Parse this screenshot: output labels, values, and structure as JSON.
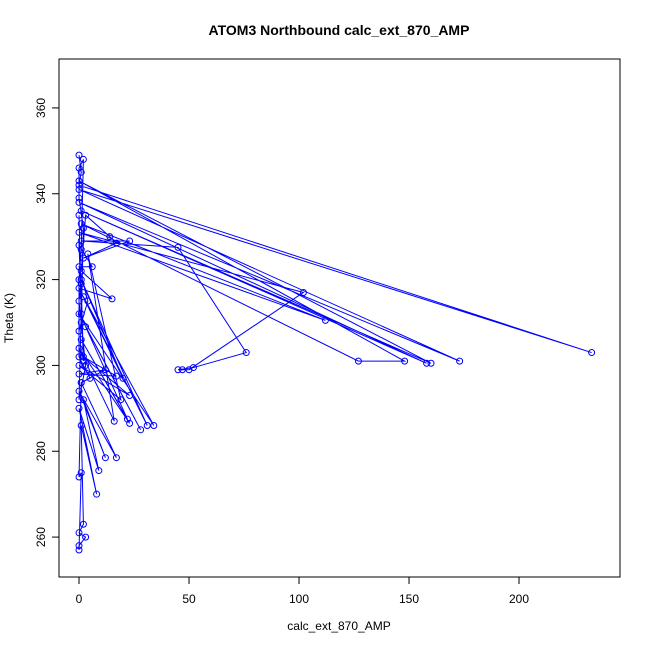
{
  "chart_data": {
    "type": "line",
    "marker": "circle",
    "title": "ATOM3 Northbound calc_ext_870_AMP",
    "x_label": "calc_ext_870_AMP",
    "y_label": "Theta (K)",
    "color": "#0000ff",
    "x": [
      0,
      1,
      0,
      233,
      0,
      173,
      0,
      158,
      1,
      160,
      0,
      148,
      127,
      1,
      112,
      0,
      102,
      50,
      47,
      45,
      52,
      76,
      45,
      1,
      23,
      2,
      17,
      14,
      3,
      1,
      15,
      0,
      20,
      1,
      31,
      2,
      34,
      0,
      28,
      3,
      22,
      1,
      23,
      0,
      16,
      4,
      19,
      0,
      23,
      2,
      17,
      0,
      12,
      1,
      17,
      0,
      12,
      2,
      9,
      0,
      8,
      1,
      2,
      0,
      3,
      0,
      0,
      1,
      0,
      1,
      5,
      0,
      0,
      1,
      2,
      0,
      0,
      2,
      1,
      0,
      4,
      0,
      6,
      0,
      2,
      1,
      0,
      3,
      0,
      1,
      0
    ],
    "values": [
      349,
      345,
      342,
      303,
      341,
      301,
      338,
      300.5,
      336,
      300.5,
      343,
      301,
      301,
      333,
      310.5,
      331,
      317,
      299,
      299,
      299,
      299.5,
      303,
      327.5,
      329,
      329,
      325,
      328.5,
      330,
      335,
      322,
      315.5,
      318,
      297,
      320,
      286,
      316,
      286,
      312,
      285,
      309,
      287.5,
      306,
      286.5,
      304,
      287,
      326,
      292,
      300,
      293,
      302,
      297.5,
      298,
      299,
      296,
      278.5,
      294,
      278.5,
      292,
      275.5,
      290,
      270,
      286,
      263,
      261,
      260,
      258,
      257,
      275,
      274,
      296,
      297,
      302,
      320,
      327,
      348,
      346,
      339,
      332,
      310,
      308,
      315,
      323,
      323,
      328,
      301,
      319,
      315,
      300,
      292,
      312,
      335
    ],
    "xlim": [
      -9.1,
      245.9
    ],
    "ylim": [
      250.7,
      371.4
    ],
    "xticks": [
      0,
      50,
      100,
      150,
      200
    ],
    "yticks": [
      260,
      280,
      300,
      320,
      340,
      360
    ]
  }
}
